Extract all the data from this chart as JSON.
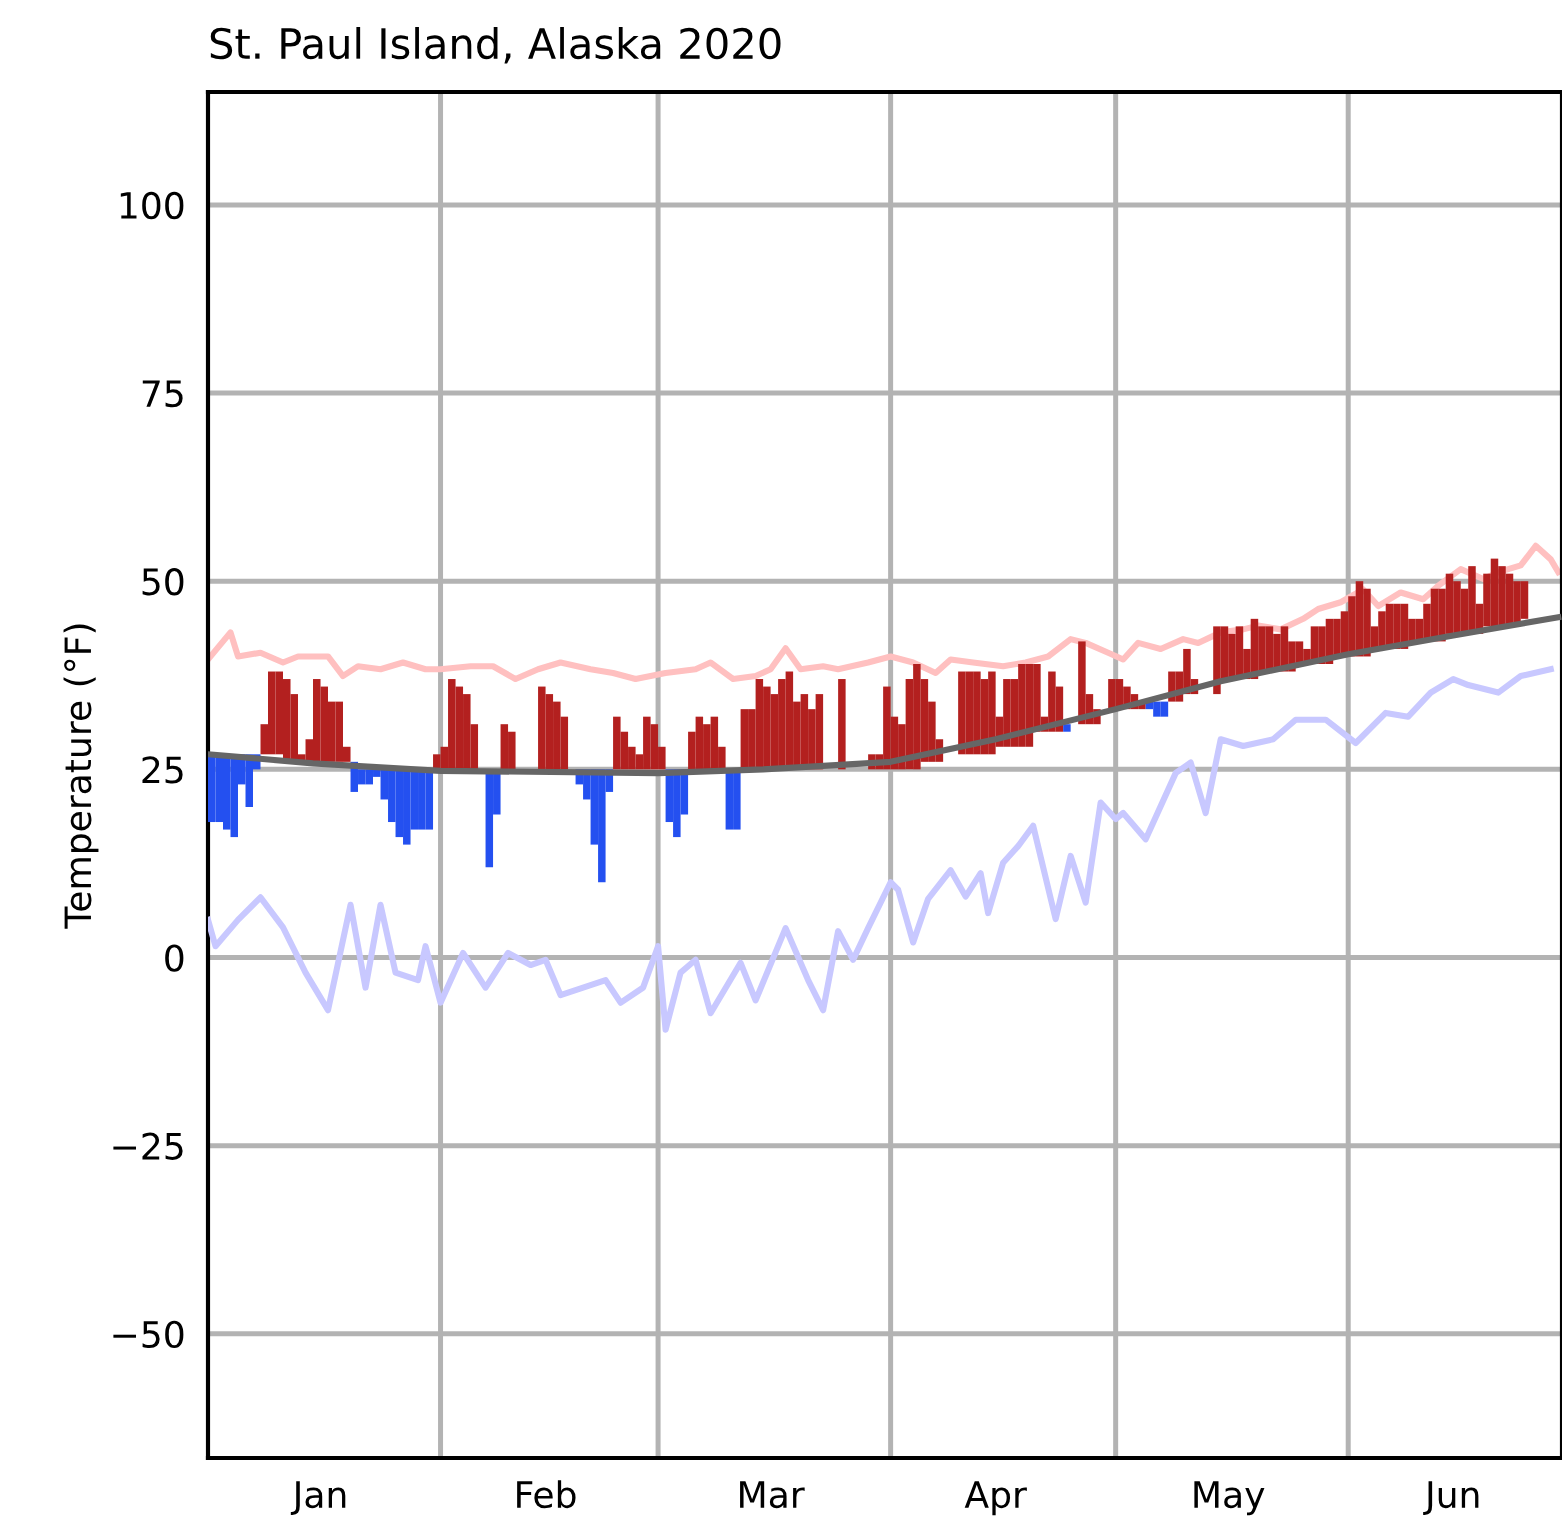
{
  "chart_data": {
    "type": "bar",
    "title": "St. Paul Island, Alaska 2020",
    "ylabel": "Temperature (°F)",
    "xlim": [
      "2020-01-01",
      "2020-06-29T12:00"
    ],
    "xticks": [
      {
        "value": "2020-02-01",
        "label": null
      },
      {
        "value": "2020-03-01",
        "label": null
      },
      {
        "value": "2020-04-01",
        "label": null
      },
      {
        "value": "2020-05-01",
        "label": null
      },
      {
        "value": "2020-06-01",
        "label": null
      },
      {
        "value": "2020-01-16",
        "label": "Jan"
      },
      {
        "value": "2020-02-15",
        "label": "Feb"
      },
      {
        "value": "2020-03-16",
        "label": "Mar"
      },
      {
        "value": "2020-04-15",
        "label": "Apr"
      },
      {
        "value": "2020-05-16",
        "label": "May"
      },
      {
        "value": "2020-06-15",
        "label": "Jun"
      }
    ],
    "ylim": [
      -66.5,
      115
    ],
    "yticks": [
      {
        "value": -50,
        "label": "−50"
      },
      {
        "value": -25,
        "label": "−25"
      },
      0,
      25,
      50,
      75,
      100
    ],
    "grid": true,
    "series": [
      {
        "type": "line",
        "color": "#ffc0c0",
        "x": [
          "2020-01-01",
          "2020-01-04",
          "2020-01-05",
          "2020-01-08",
          "2020-01-11",
          "2020-01-13",
          "2020-01-17",
          "2020-01-19",
          "2020-01-21",
          "2020-01-24",
          "2020-01-27",
          "2020-01-30",
          "2020-02-01",
          "2020-02-05",
          "2020-02-08",
          "2020-02-11",
          "2020-02-14",
          "2020-02-17",
          "2020-02-21",
          "2020-02-24",
          "2020-02-27",
          "2020-03-02",
          "2020-03-06",
          "2020-03-08",
          "2020-03-11",
          "2020-03-14",
          "2020-03-16",
          "2020-03-18",
          "2020-03-20",
          "2020-03-23",
          "2020-03-25",
          "2020-03-29",
          "2020-04-01",
          "2020-04-04",
          "2020-04-07",
          "2020-04-09",
          "2020-04-12",
          "2020-04-16",
          "2020-04-19",
          "2020-04-22",
          "2020-04-25",
          "2020-04-27",
          "2020-04-30",
          "2020-05-02",
          "2020-05-04",
          "2020-05-07",
          "2020-05-10",
          "2020-05-12",
          "2020-05-15",
          "2020-05-18",
          "2020-05-20",
          "2020-05-23",
          "2020-05-26",
          "2020-05-28",
          "2020-05-31",
          "2020-06-03",
          "2020-06-05",
          "2020-06-08",
          "2020-06-11",
          "2020-06-13",
          "2020-06-16",
          "2020-06-19",
          "2020-06-21",
          "2020-06-24",
          "2020-06-26",
          "2020-06-28",
          "2020-06-29"
        ],
        "values": [
          39.6,
          43.2,
          40,
          40.5,
          39.2,
          40,
          40,
          37.4,
          38.7,
          38.3,
          39.2,
          38.3,
          38.3,
          38.7,
          38.7,
          37,
          38.3,
          39.2,
          38.3,
          37.8,
          37,
          37.8,
          38.3,
          39.2,
          37,
          37.4,
          38.3,
          41.1,
          38.3,
          38.7,
          38.3,
          39.2,
          40,
          39.2,
          37.8,
          39.6,
          39.2,
          38.7,
          39.2,
          40,
          42.3,
          41.8,
          40.5,
          39.6,
          41.8,
          41,
          42.3,
          41.8,
          43.2,
          43.6,
          44.1,
          43.6,
          45,
          46.3,
          47.2,
          48.9,
          46.7,
          48.5,
          47.6,
          49.4,
          51.6,
          50.3,
          51.2,
          52.1,
          54.7,
          52.9,
          51.2
        ]
      },
      {
        "type": "line",
        "color": "#c8c8ff",
        "x": [
          "2020-01-01",
          "2020-01-02",
          "2020-01-05",
          "2020-01-08",
          "2020-01-11",
          "2020-01-14",
          "2020-01-17",
          "2020-01-20",
          "2020-01-22",
          "2020-01-24",
          "2020-01-26",
          "2020-01-29",
          "2020-01-30",
          "2020-02-01",
          "2020-02-04",
          "2020-02-07",
          "2020-02-10",
          "2020-02-13",
          "2020-02-15",
          "2020-02-17",
          "2020-02-20",
          "2020-02-23",
          "2020-02-25",
          "2020-02-28",
          "2020-03-01",
          "2020-03-02",
          "2020-03-04",
          "2020-03-06",
          "2020-03-08",
          "2020-03-12",
          "2020-03-14",
          "2020-03-18",
          "2020-03-21",
          "2020-03-23",
          "2020-03-25",
          "2020-03-27",
          "2020-03-29",
          "2020-04-01",
          "2020-04-02",
          "2020-04-04",
          "2020-04-06",
          "2020-04-09",
          "2020-04-11",
          "2020-04-13",
          "2020-04-14",
          "2020-04-16",
          "2020-04-18",
          "2020-04-20",
          "2020-04-23",
          "2020-04-25",
          "2020-04-27",
          "2020-04-29",
          "2020-05-01",
          "2020-05-02",
          "2020-05-05",
          "2020-05-09",
          "2020-05-11",
          "2020-05-13",
          "2020-05-15",
          "2020-05-18",
          "2020-05-22",
          "2020-05-25",
          "2020-05-29",
          "2020-06-02",
          "2020-06-06",
          "2020-06-09",
          "2020-06-12",
          "2020-06-15",
          "2020-06-17",
          "2020-06-21",
          "2020-06-24",
          "2020-06-28"
        ],
        "values": [
          5,
          1.5,
          5,
          8,
          4,
          -2,
          -7,
          7,
          -4,
          7,
          -2,
          -3,
          1.5,
          -6,
          0.6,
          -4,
          0.6,
          -1,
          -0.3,
          -5,
          -4,
          -3,
          -6,
          -4,
          1.5,
          -9.6,
          -2,
          -0.3,
          -7.4,
          -0.7,
          -5.7,
          3.9,
          -3,
          -7,
          3.5,
          -0.3,
          3.9,
          10,
          9,
          2,
          7.8,
          11.6,
          8.1,
          11.2,
          5.9,
          12.6,
          14.8,
          17.5,
          5.1,
          13.5,
          7.3,
          20.6,
          18.4,
          19.2,
          15.7,
          24.5,
          25.9,
          19.2,
          29,
          28.1,
          29,
          31.6,
          31.6,
          28.5,
          32.5,
          32,
          35.2,
          37,
          36.2,
          35.2,
          37.4,
          38.3
        ]
      },
      {
        "color": "#b3201f",
        "x": [
          "2020-01-08",
          "2020-01-09",
          "2020-01-10",
          "2020-01-11",
          "2020-01-12",
          "2020-01-13",
          "2020-01-14",
          "2020-01-15",
          "2020-01-16",
          "2020-01-17",
          "2020-01-18",
          "2020-01-19",
          "2020-01-31",
          "2020-02-01",
          "2020-02-02",
          "2020-02-03",
          "2020-02-04",
          "2020-02-05",
          "2020-02-09",
          "2020-02-10",
          "2020-02-14",
          "2020-02-15",
          "2020-02-16",
          "2020-02-17",
          "2020-02-24",
          "2020-02-25",
          "2020-02-26",
          "2020-02-27",
          "2020-02-28",
          "2020-02-29",
          "2020-03-01",
          "2020-03-05",
          "2020-03-06",
          "2020-03-07",
          "2020-03-08",
          "2020-03-09",
          "2020-03-12",
          "2020-03-13",
          "2020-03-14",
          "2020-03-15",
          "2020-03-16",
          "2020-03-17",
          "2020-03-18",
          "2020-03-19",
          "2020-03-20",
          "2020-03-21",
          "2020-03-22",
          "2020-03-25",
          "2020-03-29",
          "2020-03-30",
          "2020-03-31",
          "2020-04-01",
          "2020-04-02",
          "2020-04-03",
          "2020-04-04",
          "2020-04-05",
          "2020-04-06",
          "2020-04-07",
          "2020-04-10",
          "2020-04-11",
          "2020-04-12",
          "2020-04-13",
          "2020-04-14",
          "2020-04-15",
          "2020-04-16",
          "2020-04-17",
          "2020-04-18",
          "2020-04-19",
          "2020-04-20",
          "2020-04-21",
          "2020-04-22",
          "2020-04-23",
          "2020-04-26",
          "2020-04-27",
          "2020-04-28",
          "2020-04-30",
          "2020-05-01",
          "2020-05-02",
          "2020-05-03",
          "2020-05-04",
          "2020-05-08",
          "2020-05-09",
          "2020-05-10",
          "2020-05-11",
          "2020-05-14",
          "2020-05-15",
          "2020-05-16",
          "2020-05-17",
          "2020-05-18",
          "2020-05-19",
          "2020-05-20",
          "2020-05-21",
          "2020-05-22",
          "2020-05-23",
          "2020-05-24",
          "2020-05-25",
          "2020-05-26",
          "2020-05-27",
          "2020-05-28",
          "2020-05-29",
          "2020-05-30",
          "2020-05-31",
          "2020-06-01",
          "2020-06-02",
          "2020-06-03",
          "2020-06-04",
          "2020-06-05",
          "2020-06-06",
          "2020-06-07",
          "2020-06-08",
          "2020-06-09",
          "2020-06-10",
          "2020-06-11",
          "2020-06-12",
          "2020-06-13",
          "2020-06-14",
          "2020-06-15",
          "2020-06-16",
          "2020-06-17",
          "2020-06-18",
          "2020-06-19",
          "2020-06-20",
          "2020-06-21",
          "2020-06-22",
          "2020-06-23",
          "2020-06-24"
        ],
        "base": [
          27,
          27,
          27,
          26,
          26,
          26,
          26,
          26,
          26,
          26,
          26,
          26,
          25,
          25,
          25,
          25,
          25,
          25,
          25,
          25,
          25,
          25,
          25,
          25,
          25,
          25,
          25,
          25,
          25,
          25,
          25,
          25,
          25,
          25,
          25,
          25,
          25,
          25,
          25,
          25,
          25,
          25,
          25,
          25,
          25,
          25,
          25,
          25,
          25,
          25,
          25,
          25,
          25,
          25,
          25,
          26,
          26,
          26,
          27,
          27,
          27,
          27,
          27,
          28,
          28,
          28,
          28,
          28,
          30,
          30,
          30,
          30,
          31,
          31,
          31,
          33,
          33,
          33,
          33,
          33,
          34,
          34,
          35,
          35,
          35,
          37,
          37,
          37,
          37,
          37,
          38,
          38,
          38,
          38,
          38,
          39,
          39,
          39,
          39,
          39,
          40,
          40,
          40,
          40,
          40,
          41,
          41,
          41,
          41,
          41,
          42,
          42,
          42,
          42,
          42,
          43,
          43,
          43,
          43,
          43,
          44,
          44,
          44,
          44,
          44,
          45
        ],
        "values": [
          4,
          11,
          11,
          11,
          9,
          1,
          3,
          11,
          10,
          8,
          8,
          2,
          2,
          3,
          12,
          11,
          10,
          6,
          6,
          5,
          11,
          10,
          9,
          7,
          7,
          5,
          3,
          2,
          7,
          6,
          3,
          5,
          7,
          6,
          7,
          3,
          8,
          8,
          12,
          11,
          10,
          12,
          13,
          9,
          10,
          8,
          10,
          12,
          2,
          2,
          11,
          7,
          6,
          12,
          14,
          11,
          8,
          3,
          11,
          11,
          11,
          10,
          11,
          4,
          9,
          9,
          11,
          11,
          9,
          2,
          8,
          6,
          11,
          4,
          2,
          4,
          4,
          3,
          2,
          1,
          4,
          4,
          6,
          2,
          9,
          7,
          6,
          7,
          4,
          8,
          6,
          6,
          5,
          6,
          4,
          3,
          2,
          5,
          5,
          6,
          5,
          6,
          8,
          10,
          9,
          3,
          5,
          6,
          6,
          6,
          3,
          3,
          5,
          7,
          7,
          8,
          7,
          6,
          9,
          4,
          7,
          9,
          8,
          7,
          6,
          5
        ]
      },
      {
        "color": "#2450f0",
        "x": [
          "2020-01-01",
          "2020-01-02",
          "2020-01-03",
          "2020-01-04",
          "2020-01-05",
          "2020-01-06",
          "2020-01-07",
          "2020-01-20",
          "2020-01-21",
          "2020-01-22",
          "2020-01-23",
          "2020-01-24",
          "2020-01-25",
          "2020-01-26",
          "2020-01-27",
          "2020-01-28",
          "2020-01-29",
          "2020-01-30",
          "2020-02-07",
          "2020-02-08",
          "2020-02-19",
          "2020-02-20",
          "2020-02-21",
          "2020-02-22",
          "2020-02-23",
          "2020-03-02",
          "2020-03-03",
          "2020-03-04",
          "2020-03-10",
          "2020-03-11",
          "2020-04-24",
          "2020-05-05",
          "2020-05-06",
          "2020-05-07"
        ],
        "base": [
          27,
          27,
          27,
          27,
          27,
          27,
          27,
          26,
          25,
          25,
          25,
          25,
          25,
          25,
          25,
          25,
          25,
          25,
          25,
          25,
          25,
          25,
          25,
          25,
          25,
          25,
          25,
          25,
          25,
          25,
          31,
          34,
          34,
          34
        ],
        "values": [
          -9,
          -9,
          -10,
          -11,
          -4,
          -7,
          -2,
          -4,
          -2,
          -2,
          -1,
          -4,
          -7,
          -9,
          -10,
          -8,
          -8,
          -8,
          -13,
          -6,
          -2,
          -4,
          -10,
          -15,
          -3,
          -7,
          -9,
          -6,
          -8,
          -8,
          -1,
          -1,
          -2,
          -2
        ]
      },
      {
        "type": "line",
        "color": "#666666",
        "x": [
          "2020-01-01",
          "2020-01-15",
          "2020-02-01",
          "2020-03-01",
          "2020-03-15",
          "2020-04-01",
          "2020-04-15",
          "2020-05-01",
          "2020-05-15",
          "2020-06-01",
          "2020-06-15",
          "2020-06-29"
        ],
        "values": [
          27,
          25.8,
          24.8,
          24.5,
          25,
          26,
          29,
          33,
          36.7,
          40.3,
          42.8,
          45.2
        ]
      }
    ]
  }
}
